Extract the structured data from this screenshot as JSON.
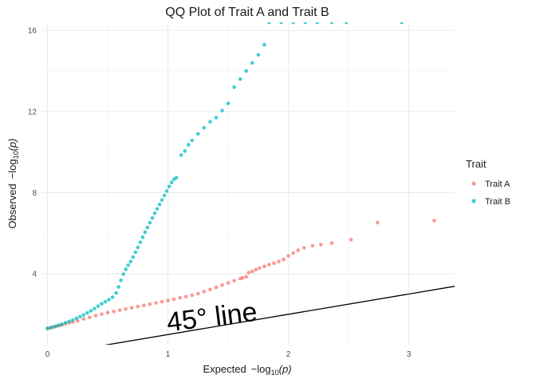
{
  "chart_data": {
    "type": "scatter",
    "title": "QQ Plot of Trait A and Trait B",
    "xlabel_main": "Expected",
    "xlabel_math": "−log",
    "xlabel_sub": "10",
    "xlabel_arg": "(p)",
    "ylabel_main": "Observed",
    "ylabel_math": "−log",
    "ylabel_sub": "10",
    "ylabel_arg": "(p)",
    "xlim": [
      -0.05,
      3.38
    ],
    "ylim": [
      0.5,
      16.4
    ],
    "x_ticks": [
      0,
      1,
      2,
      3
    ],
    "x_tick_labels": [
      "0",
      "1",
      "2",
      "3"
    ],
    "y_ticks": [
      4,
      8,
      12,
      16
    ],
    "y_tick_labels": [
      "4",
      "8",
      "12",
      "16"
    ],
    "grid": true,
    "legend": {
      "title": "Trait",
      "position": "right"
    },
    "reference_line": {
      "slope": 1,
      "intercept": 0,
      "color": "#000000"
    },
    "annotation": {
      "text": "45° line",
      "x": 1.0,
      "y": 1.15,
      "angle_deg": -7
    },
    "series": [
      {
        "name": "Trait A",
        "color": "#F8766D",
        "points": [
          [
            0.0,
            1.3
          ],
          [
            0.02,
            1.33
          ],
          [
            0.04,
            1.36
          ],
          [
            0.06,
            1.39
          ],
          [
            0.08,
            1.42
          ],
          [
            0.1,
            1.45
          ],
          [
            0.12,
            1.48
          ],
          [
            0.15,
            1.53
          ],
          [
            0.18,
            1.58
          ],
          [
            0.21,
            1.62
          ],
          [
            0.25,
            1.68
          ],
          [
            0.3,
            1.77
          ],
          [
            0.35,
            1.85
          ],
          [
            0.4,
            1.93
          ],
          [
            0.45,
            2.01
          ],
          [
            0.5,
            2.08
          ],
          [
            0.55,
            2.14
          ],
          [
            0.6,
            2.2
          ],
          [
            0.65,
            2.26
          ],
          [
            0.7,
            2.32
          ],
          [
            0.75,
            2.38
          ],
          [
            0.8,
            2.44
          ],
          [
            0.85,
            2.5
          ],
          [
            0.9,
            2.56
          ],
          [
            0.95,
            2.62
          ],
          [
            1.0,
            2.68
          ],
          [
            1.05,
            2.74
          ],
          [
            1.1,
            2.81
          ],
          [
            1.15,
            2.87
          ],
          [
            1.2,
            2.94
          ],
          [
            1.25,
            3.02
          ],
          [
            1.3,
            3.12
          ],
          [
            1.35,
            3.22
          ],
          [
            1.4,
            3.33
          ],
          [
            1.45,
            3.44
          ],
          [
            1.5,
            3.55
          ],
          [
            1.55,
            3.66
          ],
          [
            1.6,
            3.76
          ],
          [
            1.62,
            3.8
          ],
          [
            1.65,
            3.85
          ],
          [
            1.67,
            4.05
          ],
          [
            1.7,
            4.12
          ],
          [
            1.73,
            4.2
          ],
          [
            1.76,
            4.28
          ],
          [
            1.8,
            4.36
          ],
          [
            1.84,
            4.45
          ],
          [
            1.88,
            4.52
          ],
          [
            1.92,
            4.6
          ],
          [
            1.96,
            4.7
          ],
          [
            2.0,
            4.88
          ],
          [
            2.04,
            5.02
          ],
          [
            2.08,
            5.16
          ],
          [
            2.13,
            5.28
          ],
          [
            2.2,
            5.38
          ],
          [
            2.27,
            5.44
          ],
          [
            2.36,
            5.51
          ],
          [
            2.52,
            5.68
          ],
          [
            2.74,
            6.52
          ],
          [
            3.21,
            6.62
          ]
        ]
      },
      {
        "name": "Trait B",
        "color": "#00BFC4",
        "points": [
          [
            0.0,
            1.3
          ],
          [
            0.03,
            1.35
          ],
          [
            0.06,
            1.4
          ],
          [
            0.09,
            1.45
          ],
          [
            0.12,
            1.51
          ],
          [
            0.15,
            1.58
          ],
          [
            0.18,
            1.65
          ],
          [
            0.21,
            1.72
          ],
          [
            0.24,
            1.8
          ],
          [
            0.27,
            1.88
          ],
          [
            0.3,
            1.97
          ],
          [
            0.33,
            2.07
          ],
          [
            0.36,
            2.17
          ],
          [
            0.39,
            2.28
          ],
          [
            0.42,
            2.4
          ],
          [
            0.45,
            2.52
          ],
          [
            0.48,
            2.62
          ],
          [
            0.51,
            2.72
          ],
          [
            0.54,
            2.84
          ],
          [
            0.57,
            3.05
          ],
          [
            0.59,
            3.35
          ],
          [
            0.61,
            3.68
          ],
          [
            0.63,
            3.98
          ],
          [
            0.65,
            4.22
          ],
          [
            0.67,
            4.42
          ],
          [
            0.69,
            4.6
          ],
          [
            0.71,
            4.82
          ],
          [
            0.73,
            5.06
          ],
          [
            0.75,
            5.3
          ],
          [
            0.77,
            5.55
          ],
          [
            0.79,
            5.8
          ],
          [
            0.81,
            6.05
          ],
          [
            0.83,
            6.28
          ],
          [
            0.85,
            6.52
          ],
          [
            0.87,
            6.75
          ],
          [
            0.89,
            6.98
          ],
          [
            0.91,
            7.2
          ],
          [
            0.93,
            7.42
          ],
          [
            0.95,
            7.64
          ],
          [
            0.97,
            7.86
          ],
          [
            0.99,
            8.08
          ],
          [
            1.01,
            8.3
          ],
          [
            1.03,
            8.5
          ],
          [
            1.05,
            8.66
          ],
          [
            1.07,
            8.74
          ],
          [
            1.11,
            9.85
          ],
          [
            1.14,
            10.05
          ],
          [
            1.17,
            10.36
          ],
          [
            1.2,
            10.58
          ],
          [
            1.25,
            10.9
          ],
          [
            1.3,
            11.2
          ],
          [
            1.35,
            11.5
          ],
          [
            1.4,
            11.7
          ],
          [
            1.45,
            12.05
          ],
          [
            1.5,
            12.4
          ],
          [
            1.55,
            13.2
          ],
          [
            1.6,
            13.6
          ],
          [
            1.65,
            14.0
          ],
          [
            1.7,
            14.4
          ],
          [
            1.75,
            14.8
          ],
          [
            1.8,
            15.3
          ],
          [
            1.84,
            16.4
          ],
          [
            1.94,
            16.4
          ],
          [
            2.04,
            16.4
          ],
          [
            2.14,
            16.4
          ],
          [
            2.24,
            16.4
          ],
          [
            2.36,
            16.4
          ],
          [
            2.48,
            16.4
          ],
          [
            2.94,
            16.4
          ]
        ]
      }
    ]
  }
}
